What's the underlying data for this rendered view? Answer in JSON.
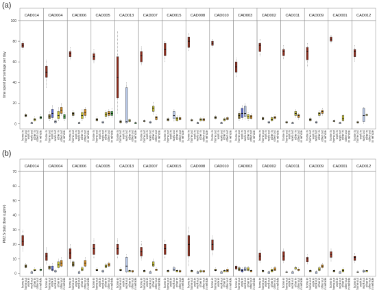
{
  "chart_data": [
    {
      "type": "box",
      "panel_label": "(a)",
      "ylabel": "time spent percentage per day",
      "ylim": [
        -5,
        100
      ],
      "yticks": [
        0,
        20,
        40,
        60,
        80,
        100
      ],
      "facets": [
        "CAD014",
        "CAD004",
        "CAD006",
        "CAD005",
        "CAD013",
        "CAD007",
        "CAD015",
        "CAD008",
        "CAD010",
        "CAD003",
        "CAD002",
        "CAD011",
        "CAD009",
        "CAD001",
        "CAD012"
      ],
      "categories": [
        "home in",
        "home out",
        "work in",
        "work out",
        "other in",
        "other out",
        "in vehicle"
      ],
      "colors": [
        "#8b2a1a",
        "#7a6a2a",
        "#5a6ad0",
        "#b8c8e8",
        "#c8c030",
        "#d08a20",
        "#40a040"
      ],
      "boxes": {
        "CAD014": [
          [
            72,
            74,
            76,
            78,
            80
          ],
          [
            6,
            7,
            8,
            9,
            10
          ],
          null,
          [
            0,
            0,
            1,
            1,
            2
          ],
          [
            2,
            3,
            4,
            5,
            7
          ],
          null,
          [
            4,
            5,
            6,
            7,
            9
          ]
        ],
        "CAD004": [
          [
            35,
            45,
            50,
            56,
            62
          ],
          [
            3,
            5,
            7,
            9,
            12
          ],
          [
            4,
            6,
            10,
            14,
            18
          ],
          [
            0,
            1,
            2,
            3,
            4
          ],
          [
            3,
            5,
            8,
            12,
            16
          ],
          [
            8,
            10,
            13,
            16,
            20
          ],
          [
            3,
            5,
            7,
            9,
            11
          ]
        ],
        "CAD006": [
          [
            62,
            65,
            68,
            70,
            74
          ],
          [
            6,
            8,
            10,
            11,
            13
          ],
          null,
          [
            0,
            0,
            1,
            1,
            2
          ],
          [
            3,
            5,
            8,
            11,
            14
          ],
          [
            6,
            8,
            11,
            14,
            16
          ],
          null
        ],
        "CAD005": [
          [
            58,
            62,
            65,
            68,
            72
          ],
          [
            2,
            3,
            4,
            5,
            7
          ],
          null,
          [
            0,
            1,
            1,
            2,
            3
          ],
          [
            5,
            7,
            9,
            11,
            13
          ],
          [
            6,
            8,
            10,
            12,
            14
          ],
          [
            6,
            8,
            10,
            12,
            15
          ]
        ],
        "CAD013": [
          [
            10,
            25,
            45,
            65,
            90
          ],
          [
            0,
            1,
            2,
            3,
            4
          ],
          null,
          [
            0,
            1,
            2,
            35,
            40
          ],
          [
            1,
            2,
            3,
            4,
            5
          ],
          null,
          [
            0,
            0,
            1,
            1,
            2
          ]
        ],
        "CAD007": [
          [
            56,
            60,
            66,
            70,
            75
          ],
          [
            1,
            2,
            3,
            3,
            4
          ],
          null,
          [
            0,
            1,
            1,
            2,
            3
          ],
          [
            8,
            12,
            15,
            17,
            21
          ],
          [
            3,
            4,
            6,
            7,
            9
          ],
          null
        ],
        "CAD015": [
          [
            60,
            66,
            72,
            78,
            80
          ],
          [
            2,
            3,
            4,
            5,
            6
          ],
          null,
          [
            2,
            5,
            8,
            12,
            14
          ],
          [
            2,
            3,
            5,
            6,
            8
          ],
          [
            3,
            4,
            5,
            6,
            8
          ],
          null
        ],
        "CAD008": [
          [
            70,
            74,
            80,
            84,
            88
          ],
          [
            2,
            3,
            3,
            4,
            5
          ],
          null,
          [
            0,
            0,
            1,
            1,
            2
          ],
          [
            2,
            3,
            4,
            5,
            6
          ],
          [
            2,
            3,
            4,
            5,
            7
          ],
          null
        ],
        "CAD010": [
          [
            74,
            76,
            78,
            80,
            82
          ],
          [
            4,
            5,
            6,
            7,
            8
          ],
          null,
          [
            0,
            0,
            1,
            1,
            2
          ],
          [
            2,
            3,
            4,
            5,
            6
          ],
          [
            3,
            4,
            5,
            6,
            7
          ],
          null
        ],
        "CAD003": [
          [
            45,
            50,
            55,
            60,
            64
          ],
          [
            3,
            5,
            8,
            10,
            12
          ],
          [
            4,
            6,
            10,
            15,
            18
          ],
          [
            4,
            7,
            10,
            17,
            20
          ],
          [
            3,
            5,
            7,
            9,
            11
          ],
          [
            4,
            5,
            7,
            8,
            10
          ],
          null
        ],
        "CAD002": [
          [
            65,
            70,
            76,
            78,
            82
          ],
          [
            3,
            4,
            5,
            6,
            7
          ],
          null,
          [
            0,
            1,
            1,
            2,
            3
          ],
          [
            2,
            3,
            4,
            6,
            7
          ],
          [
            4,
            5,
            6,
            7,
            9
          ],
          null
        ],
        "CAD011": [
          [
            62,
            66,
            70,
            72,
            76
          ],
          [
            0,
            1,
            1,
            2,
            3
          ],
          null,
          [
            0,
            0,
            1,
            1,
            2
          ],
          [
            6,
            8,
            10,
            12,
            14
          ],
          [
            4,
            6,
            8,
            9,
            10
          ],
          null
        ],
        "CAD009": [
          [
            55,
            62,
            70,
            74,
            78
          ],
          [
            2,
            3,
            4,
            5,
            6
          ],
          null,
          [
            0,
            1,
            1,
            2,
            3
          ],
          [
            6,
            8,
            10,
            11,
            13
          ],
          [
            8,
            10,
            12,
            13,
            15
          ],
          null
        ],
        "CAD001": [
          [
            78,
            80,
            82,
            84,
            86
          ],
          [
            1,
            2,
            3,
            3,
            4
          ],
          null,
          [
            0,
            0,
            1,
            1,
            2
          ],
          [
            2,
            3,
            5,
            8,
            9
          ],
          null,
          null
        ],
        "CAD012": [
          [
            60,
            65,
            70,
            72,
            76
          ],
          [
            0,
            1,
            1,
            2,
            3
          ],
          null,
          [
            0,
            2,
            8,
            15,
            16
          ],
          [
            7,
            8,
            9,
            9,
            10
          ],
          null,
          null
        ]
      }
    },
    {
      "type": "box",
      "panel_label": "(b)",
      "ylabel": "PM2.5 daily dose (ug/m³)",
      "ylim": [
        -2,
        70
      ],
      "yticks": [
        0,
        10,
        20,
        30,
        40,
        50,
        60,
        70
      ],
      "facets": [
        "CAD014",
        "CAD004",
        "CAD006",
        "CAD005",
        "CAD013",
        "CAD007",
        "CAD015",
        "CAD008",
        "CAD010",
        "CAD003",
        "CAD002",
        "CAD011",
        "CAD009",
        "CAD001",
        "CAD012"
      ],
      "categories": [
        "home in",
        "home out",
        "work in",
        "work out",
        "other in",
        "other out",
        "in vehicle"
      ],
      "colors": [
        "#8b2a1a",
        "#7a6a2a",
        "#5a6ad0",
        "#b8c8e8",
        "#c8c030",
        "#d08a20",
        "#40a040"
      ],
      "boxes": {
        "CAD014": [
          [
            15,
            19,
            22,
            26,
            30
          ],
          [
            3,
            4,
            5,
            6,
            7
          ],
          null,
          [
            0,
            0,
            1,
            1,
            2
          ],
          [
            1,
            2,
            2,
            3,
            4
          ],
          null,
          [
            1,
            2,
            3,
            3,
            4
          ]
        ],
        "CAD004": [
          [
            6,
            9,
            12,
            14,
            18
          ],
          [
            2,
            3,
            4,
            5,
            6
          ],
          [
            1,
            2,
            3,
            5,
            7
          ],
          [
            0,
            1,
            1,
            2,
            3
          ],
          [
            3,
            4,
            6,
            8,
            10
          ],
          [
            4,
            5,
            7,
            9,
            11
          ],
          null
        ],
        "CAD006": [
          [
            7,
            10,
            14,
            17,
            20
          ],
          [
            3,
            5,
            6,
            8,
            9
          ],
          null,
          [
            0,
            0,
            1,
            1,
            2
          ],
          [
            1,
            2,
            3,
            4,
            5
          ],
          [
            4,
            5,
            7,
            9,
            11
          ],
          null
        ],
        "CAD005": [
          [
            10,
            13,
            17,
            20,
            24
          ],
          [
            1,
            2,
            2,
            3,
            4
          ],
          null,
          [
            0,
            1,
            1,
            2,
            3
          ],
          [
            3,
            4,
            5,
            6,
            7
          ],
          [
            4,
            5,
            6,
            7,
            8
          ],
          null
        ],
        "CAD013": [
          [
            10,
            13,
            17,
            20,
            24
          ],
          [
            1,
            2,
            2,
            3,
            4
          ],
          null,
          [
            0,
            1,
            5,
            11,
            13
          ],
          [
            1,
            1,
            2,
            2,
            3
          ],
          [
            0,
            1,
            1,
            2,
            2
          ],
          null
        ],
        "CAD007": [
          [
            9,
            12,
            15,
            18,
            22
          ],
          [
            1,
            1,
            2,
            2,
            3
          ],
          null,
          [
            0,
            0,
            1,
            1,
            2
          ],
          [
            4,
            5,
            6,
            8,
            10
          ],
          [
            2,
            2,
            3,
            3,
            4
          ],
          null
        ],
        "CAD015": [
          [
            10,
            13,
            17,
            20,
            23
          ],
          [
            1,
            1,
            2,
            2,
            3
          ],
          null,
          [
            1,
            2,
            3,
            4,
            5
          ],
          [
            1,
            1,
            2,
            2,
            3
          ],
          [
            0,
            1,
            1,
            2,
            3
          ],
          null
        ],
        "CAD008": [
          [
            5,
            12,
            20,
            26,
            32
          ],
          [
            1,
            1,
            2,
            2,
            3
          ],
          null,
          [
            0,
            0,
            1,
            1,
            2
          ],
          [
            0,
            1,
            1,
            2,
            3
          ],
          [
            0,
            1,
            1,
            2,
            2
          ],
          null
        ],
        "CAD010": [
          [
            12,
            16,
            20,
            23,
            26
          ],
          [
            1,
            2,
            2,
            3,
            4
          ],
          null,
          [
            0,
            0,
            1,
            1,
            2
          ],
          [
            1,
            1,
            2,
            2,
            3
          ],
          [
            1,
            1,
            2,
            3,
            4
          ],
          null
        ],
        "CAD003": [
          [
            2,
            3,
            4,
            5,
            6
          ],
          [
            1,
            2,
            3,
            4,
            5
          ],
          [
            0,
            1,
            2,
            3,
            4
          ],
          [
            1,
            2,
            3,
            4,
            5
          ],
          [
            1,
            2,
            3,
            4,
            5
          ],
          [
            1,
            1,
            2,
            2,
            3
          ],
          null
        ],
        "CAD002": [
          [
            7,
            9,
            12,
            14,
            16
          ],
          [
            1,
            1,
            2,
            2,
            3
          ],
          null,
          [
            0,
            0,
            1,
            1,
            2
          ],
          [
            1,
            1,
            2,
            3,
            4
          ],
          [
            2,
            2,
            3,
            4,
            5
          ],
          null
        ],
        "CAD011": [
          [
            7,
            9,
            12,
            15,
            17
          ],
          [
            0,
            1,
            1,
            1,
            2
          ],
          null,
          [
            0,
            0,
            1,
            1,
            2
          ],
          [
            2,
            3,
            4,
            4,
            5
          ],
          [
            1,
            2,
            3,
            3,
            4
          ],
          null
        ],
        "CAD009": [
          [
            6,
            8,
            10,
            11,
            13
          ],
          [
            1,
            1,
            2,
            2,
            3
          ],
          null,
          [
            0,
            0,
            1,
            1,
            2
          ],
          [
            1,
            2,
            3,
            4,
            5
          ],
          [
            3,
            4,
            5,
            6,
            7
          ],
          null
        ],
        "CAD001": [
          [
            8,
            11,
            13,
            15,
            17
          ],
          [
            1,
            1,
            2,
            2,
            3
          ],
          null,
          [
            0,
            0,
            1,
            1,
            2
          ],
          [
            1,
            1,
            2,
            3,
            4
          ],
          null,
          null
        ],
        "CAD012": [
          [
            7,
            9,
            11,
            12,
            14
          ],
          [
            0,
            1,
            1,
            1,
            2
          ],
          null,
          [
            0,
            1,
            1,
            2,
            3
          ],
          [
            1,
            1,
            2,
            2,
            2
          ],
          null,
          null
        ]
      }
    }
  ]
}
